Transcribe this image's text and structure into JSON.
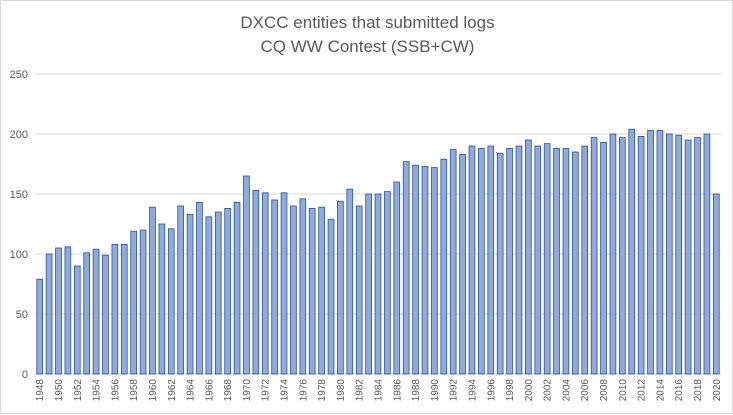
{
  "chart_data": {
    "type": "bar",
    "title": [
      "DXCC entities that submitted logs",
      "CQ WW Contest (SSB+CW)"
    ],
    "xlabel": "",
    "ylabel": "",
    "ylim": [
      0,
      250
    ],
    "yticks": [
      0,
      50,
      100,
      150,
      200,
      250
    ],
    "grid": true,
    "legend": "none",
    "bar_color": "#8faadc",
    "bar_edge_color": "#2f528f",
    "categories": [
      "1948",
      "1949",
      "1950",
      "1951",
      "1952",
      "1953",
      "1954",
      "1955",
      "1956",
      "1957",
      "1958",
      "1959",
      "1960",
      "1961",
      "1962",
      "1963",
      "1964",
      "1965",
      "1966",
      "1967",
      "1968",
      "1969",
      "1970",
      "1971",
      "1972",
      "1973",
      "1974",
      "1975",
      "1976",
      "1977",
      "1978",
      "1979",
      "1980",
      "1981",
      "1982",
      "1983",
      "1984",
      "1985",
      "1986",
      "1987",
      "1988",
      "1989",
      "1990",
      "1991",
      "1992",
      "1993",
      "1994",
      "1995",
      "1996",
      "1997",
      "1998",
      "1999",
      "2000",
      "2001",
      "2002",
      "2003",
      "2004",
      "2005",
      "2006",
      "2007",
      "2008",
      "2009",
      "2010",
      "2011",
      "2012",
      "2013",
      "2014",
      "2015",
      "2016",
      "2017",
      "2018",
      "2019",
      "2020"
    ],
    "xtick_labels": [
      "1948",
      "1950",
      "1952",
      "1954",
      "1956",
      "1958",
      "1960",
      "1962",
      "1964",
      "1966",
      "1968",
      "1970",
      "1972",
      "1974",
      "1976",
      "1978",
      "1980",
      "1982",
      "1984",
      "1986",
      "1988",
      "1990",
      "1992",
      "1994",
      "1996",
      "1998",
      "2000",
      "2002",
      "2004",
      "2006",
      "2008",
      "2010",
      "2012",
      "2014",
      "2016",
      "2018",
      "2020"
    ],
    "values": [
      79,
      100,
      105,
      106,
      90,
      101,
      104,
      99,
      108,
      108,
      119,
      120,
      139,
      125,
      121,
      140,
      133,
      143,
      131,
      135,
      138,
      143,
      165,
      153,
      151,
      145,
      151,
      140,
      146,
      138,
      139,
      129,
      144,
      154,
      140,
      150,
      150,
      152,
      160,
      177,
      174,
      173,
      172,
      179,
      187,
      183,
      190,
      188,
      190,
      184,
      188,
      190,
      195,
      190,
      192,
      188,
      188,
      185,
      190,
      197,
      193,
      200,
      197,
      204,
      198,
      203,
      203,
      200,
      199,
      195,
      197,
      200,
      150
    ]
  }
}
